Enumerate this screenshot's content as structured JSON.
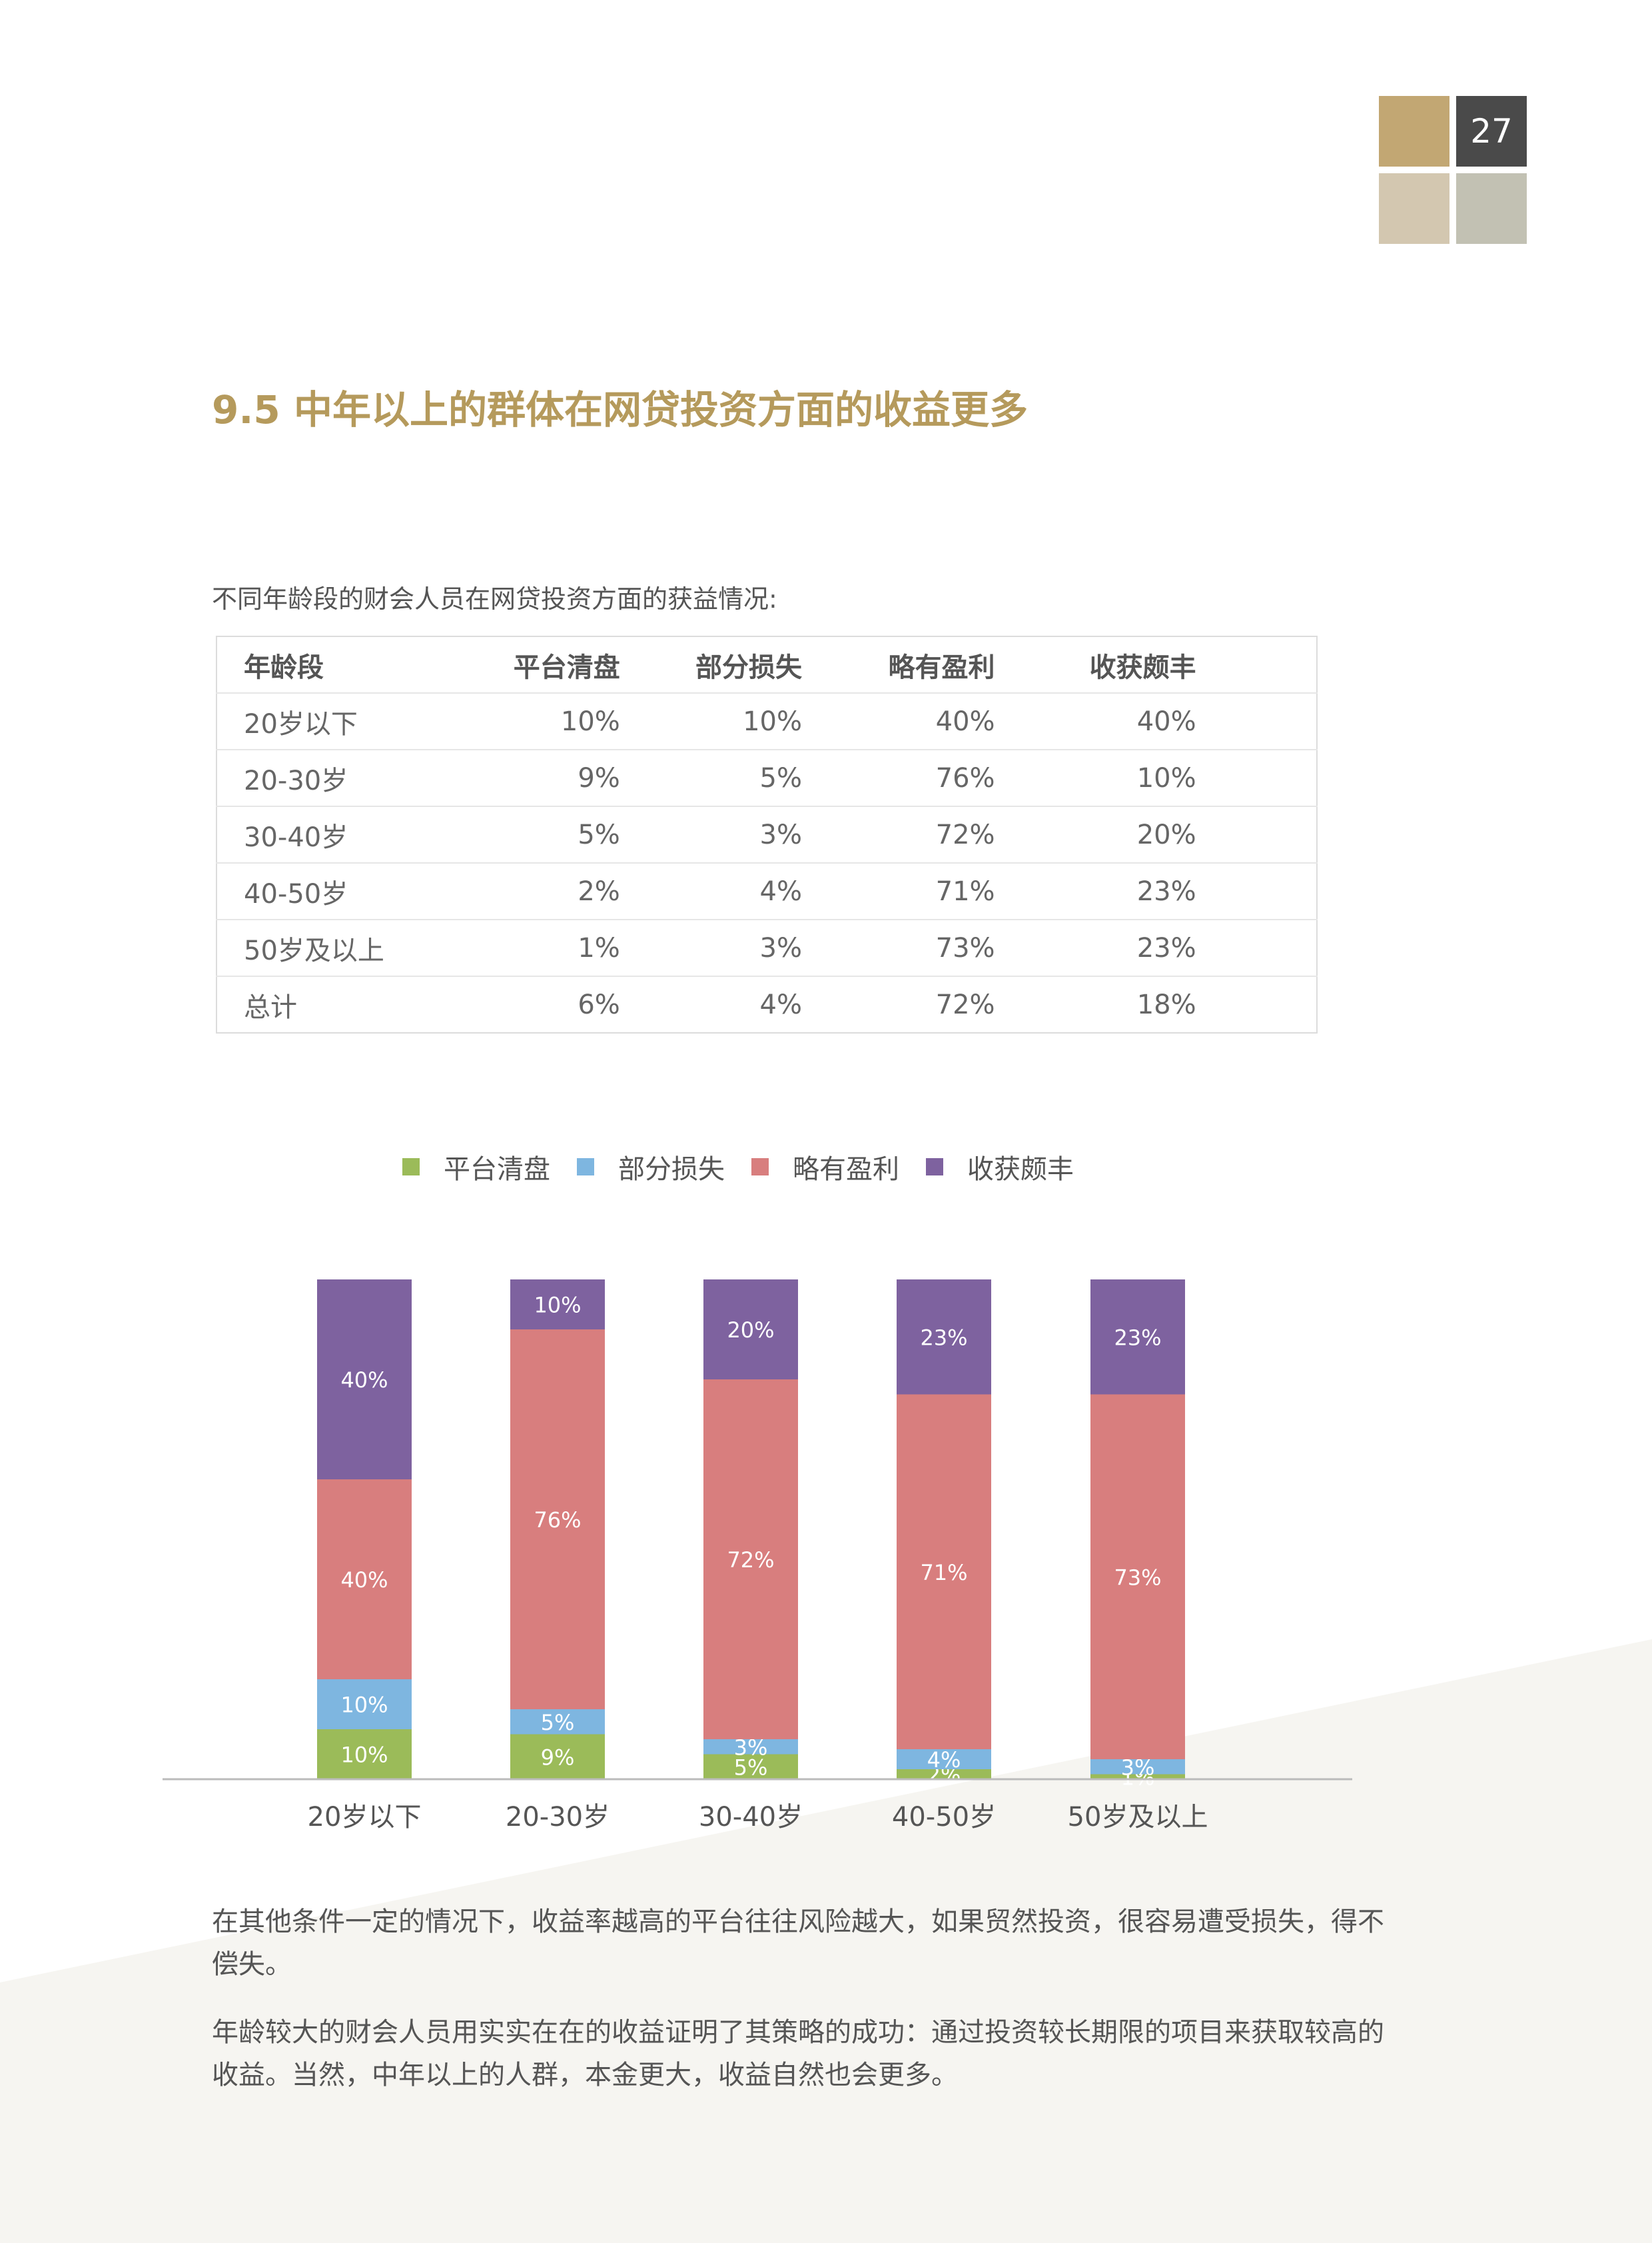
{
  "page_number": "27",
  "colors": {
    "accent_gold": "#c2a773",
    "title_gold": "#b59a5c",
    "platform_clearing": "#9bbb59",
    "partial_loss": "#7eb6e0",
    "slight_profit": "#d87e7e",
    "rich_harvest": "#7e629f"
  },
  "section_title": "9.5 中年以上的群体在网贷投资方面的收益更多",
  "table": {
    "caption": "不同年龄段的财会人员在网贷投资方面的获益情况:",
    "headers": [
      "年龄段",
      "平台清盘",
      "部分损失",
      "略有盈利",
      "收获颇丰"
    ],
    "rows": [
      [
        "20岁以下",
        "10%",
        "10%",
        "40%",
        "40%"
      ],
      [
        "20-30岁",
        "9%",
        "5%",
        "76%",
        "10%"
      ],
      [
        "30-40岁",
        "5%",
        "3%",
        "72%",
        "20%"
      ],
      [
        "40-50岁",
        "2%",
        "4%",
        "71%",
        "23%"
      ],
      [
        "50岁及以上",
        "1%",
        "3%",
        "73%",
        "23%"
      ],
      [
        "总计",
        "6%",
        "4%",
        "72%",
        "18%"
      ]
    ]
  },
  "chart_data": {
    "type": "bar",
    "stacked": true,
    "percent_stacked": true,
    "categories": [
      "20岁以下",
      "20-30岁",
      "30-40岁",
      "40-50岁",
      "50岁及以上"
    ],
    "series": [
      {
        "name": "平台清盘",
        "values": [
          10,
          9,
          5,
          2,
          1
        ],
        "color": "#9bbb59"
      },
      {
        "name": "部分损失",
        "values": [
          10,
          5,
          3,
          4,
          3
        ],
        "color": "#7eb6e0"
      },
      {
        "name": "略有盈利",
        "values": [
          40,
          76,
          72,
          71,
          73
        ],
        "color": "#d87e7e"
      },
      {
        "name": "收获颇丰",
        "values": [
          40,
          10,
          20,
          23,
          23
        ],
        "color": "#7e629f"
      }
    ],
    "data_labels": [
      [
        "10%",
        "9%",
        "5%",
        "2%",
        "1%"
      ],
      [
        "10%",
        "5%",
        "3%",
        "4%",
        "3%"
      ],
      [
        "40%",
        "76%",
        "72%",
        "71%",
        "73%"
      ],
      [
        "40%",
        "10%",
        "20%",
        "23%",
        "23%"
      ]
    ],
    "legend_position": "top",
    "grid": false,
    "ylim": [
      0,
      100
    ]
  },
  "paragraphs": [
    "在其他条件一定的情况下，收益率越高的平台往往风险越大，如果贸然投资，很容易遭受损失，得不偿失。",
    "年龄较大的财会人员用实实在在的收益证明了其策略的成功：通过投资较长期限的项目来获取较高的收益。当然，中年以上的人群，本金更大，收益自然也会更多。"
  ]
}
